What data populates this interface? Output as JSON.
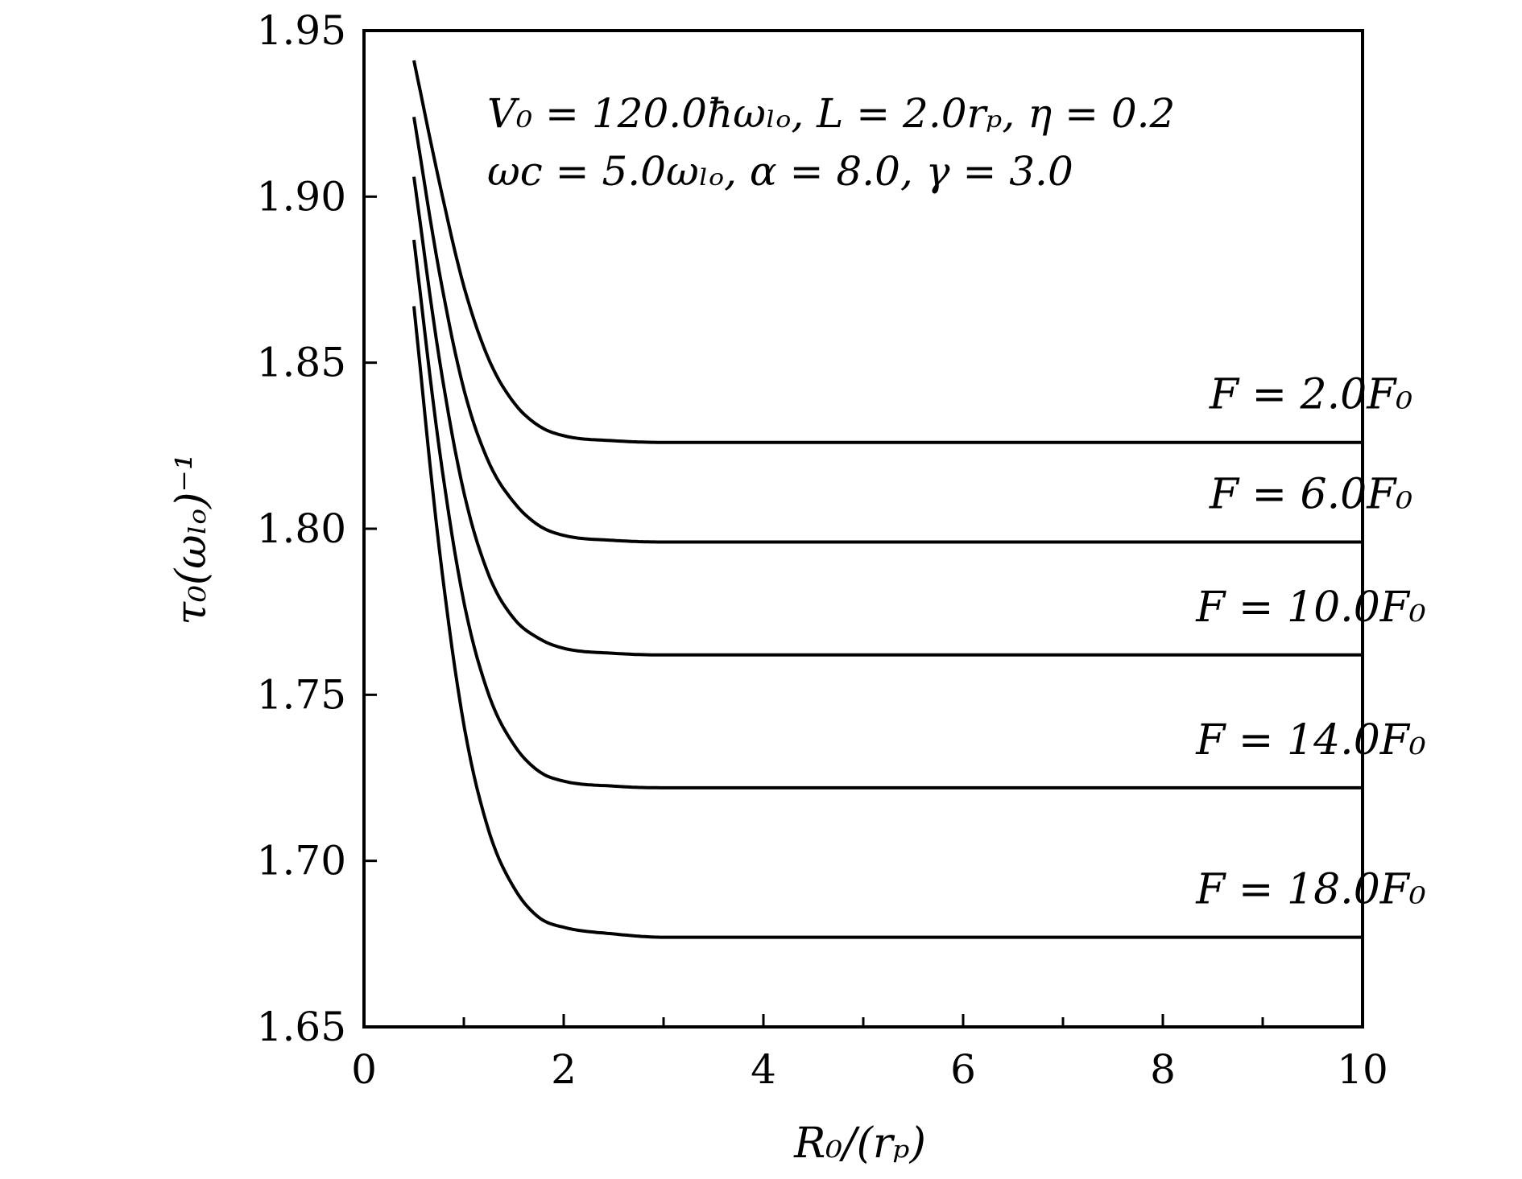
{
  "chart_data": {
    "type": "line",
    "xlabel": "R₀/(rₚ)",
    "ylabel": "τ₀(ωₗₒ)⁻¹",
    "xlim": [
      0,
      10
    ],
    "ylim": [
      1.65,
      1.95
    ],
    "x_ticks": [
      0,
      2,
      4,
      6,
      8,
      10
    ],
    "x_minor_ticks": [
      1,
      3,
      5,
      7,
      9
    ],
    "y_ticks": [
      "1.65",
      "1.70",
      "1.75",
      "1.80",
      "1.85",
      "1.90",
      "1.95"
    ],
    "grid": false,
    "legend": "inline labels at right, above each curve",
    "annotations": [
      "V₀ = 120.0ħωₗₒ, L = 2.0rₚ, η = 0.2",
      "ωc = 5.0ωₗₒ, α = 8.0, γ = 3.0"
    ],
    "x": [
      0.5,
      0.75,
      1.0,
      1.25,
      1.5,
      1.75,
      2.0,
      2.5,
      3.0,
      4.0,
      6.0,
      8.0,
      10.0
    ],
    "series": [
      {
        "name": "F = 2.0F₀",
        "values": [
          1.941,
          1.905,
          1.873,
          1.851,
          1.838,
          1.831,
          1.828,
          1.8265,
          1.826,
          1.826,
          1.826,
          1.826,
          1.826
        ]
      },
      {
        "name": "F = 6.0F₀",
        "values": [
          1.924,
          1.878,
          1.842,
          1.82,
          1.808,
          1.801,
          1.798,
          1.7965,
          1.796,
          1.796,
          1.796,
          1.796,
          1.796
        ]
      },
      {
        "name": "F = 10.0F₀",
        "values": [
          1.906,
          1.852,
          1.811,
          1.786,
          1.773,
          1.767,
          1.764,
          1.7625,
          1.762,
          1.762,
          1.762,
          1.762,
          1.762
        ]
      },
      {
        "name": "F = 14.0F₀",
        "values": [
          1.887,
          1.825,
          1.778,
          1.75,
          1.735,
          1.727,
          1.724,
          1.7225,
          1.722,
          1.722,
          1.722,
          1.722,
          1.722
        ]
      },
      {
        "name": "F = 18.0F₀",
        "values": [
          1.867,
          1.795,
          1.741,
          1.709,
          1.692,
          1.683,
          1.68,
          1.678,
          1.677,
          1.677,
          1.677,
          1.677,
          1.677
        ]
      }
    ]
  }
}
